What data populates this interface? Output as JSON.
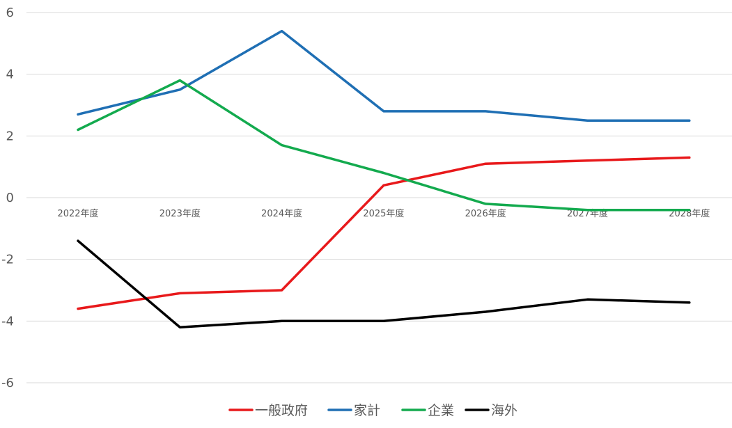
{
  "chart_data": {
    "type": "line",
    "categories": [
      "2022年度",
      "2023年度",
      "2024年度",
      "2025年度",
      "2026年度",
      "2027年度",
      "2028年度"
    ],
    "ylim": [
      -6,
      6
    ],
    "yticks": [
      6,
      4,
      2,
      0,
      -2,
      -4,
      -6
    ],
    "grid": true,
    "legend_position": "bottom",
    "series": [
      {
        "name": "一般政府",
        "color": "#e8191b",
        "values": [
          -3.6,
          -3.1,
          -3.0,
          0.4,
          1.1,
          1.2,
          1.3
        ]
      },
      {
        "name": "家計",
        "color": "#1f6fb4",
        "values": [
          2.7,
          3.5,
          5.4,
          2.8,
          2.8,
          2.5,
          2.5
        ]
      },
      {
        "name": "企業",
        "color": "#13aa4e",
        "values": [
          2.2,
          3.8,
          1.7,
          0.8,
          -0.2,
          -0.4,
          -0.4
        ]
      },
      {
        "name": "海外",
        "color": "#000000",
        "values": [
          -1.4,
          -4.2,
          -4.0,
          -4.0,
          -3.7,
          -3.3,
          -3.4
        ]
      }
    ]
  }
}
